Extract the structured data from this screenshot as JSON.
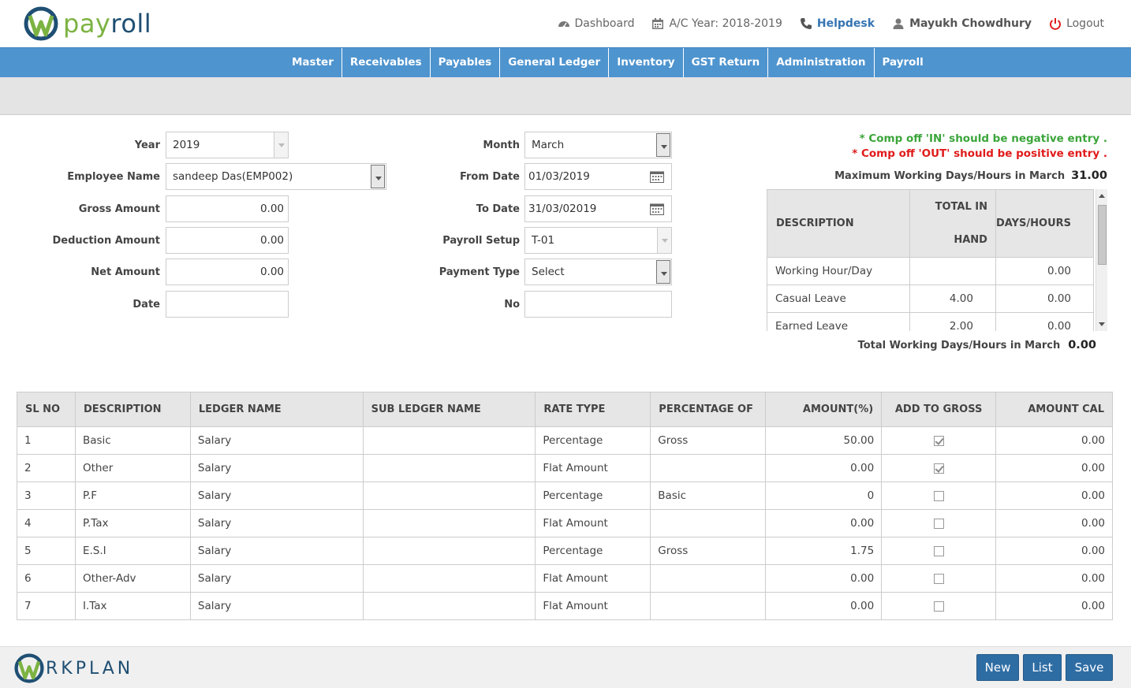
{
  "header": {
    "logo_pay": "pay",
    "logo_roll": "roll",
    "nav": {
      "dashboard": "Dashboard",
      "ac_year": "A/C Year: 2018-2019",
      "helpdesk": "Helpdesk",
      "user": "Mayukh Chowdhury",
      "logout": "Logout"
    }
  },
  "menu": [
    "Master",
    "Receivables",
    "Payables",
    "General Ledger",
    "Inventory",
    "GST Return",
    "Administration",
    "Payroll"
  ],
  "form": {
    "year_label": "Year",
    "year_value": "2019",
    "employee_label": "Employee Name",
    "employee_value": "sandeep Das(EMP002)",
    "gross_label": "Gross Amount",
    "gross_value": "0.00",
    "deduction_label": "Deduction Amount",
    "deduction_value": "0.00",
    "net_label": "Net Amount",
    "net_value": "0.00",
    "date_label": "Date",
    "date_value": "",
    "month_label": "Month",
    "month_value": "March",
    "from_label": "From Date",
    "from_value": "01/03/2019",
    "to_label": "To Date",
    "to_value": "31/03/02019",
    "setup_label": "Payroll Setup",
    "setup_value": "T-01",
    "paytype_label": "Payment Type",
    "paytype_value": "Select",
    "no_label": "No",
    "no_value": ""
  },
  "notes": {
    "comp_in": "* Comp off 'IN' should be negative entry .",
    "comp_out": "* Comp off 'OUT' should be positive entry ."
  },
  "max_working": {
    "label": "Maximum Working Days/Hours in March",
    "value": "31.00"
  },
  "total_working": {
    "label": "Total Working Days/Hours in March",
    "value": "0.00"
  },
  "leave_table": {
    "headers": {
      "description": "DESCRIPTION",
      "total_line1": "TOTAL IN",
      "total_line2": "HAND",
      "days": "DAYS/HOURS"
    },
    "rows": [
      {
        "desc": "Working Hour/Day",
        "total": "",
        "days": "0.00"
      },
      {
        "desc": "Casual Leave",
        "total": "4.00",
        "days": "0.00"
      },
      {
        "desc": "Earned Leave",
        "total": "2.00",
        "days": "0.00"
      }
    ]
  },
  "main_table": {
    "headers": [
      "SL NO",
      "DESCRIPTION",
      "LEDGER NAME",
      "SUB LEDGER NAME",
      "RATE TYPE",
      "PERCENTAGE OF",
      "AMOUNT(%)",
      "ADD TO GROSS",
      "AMOUNT CAL"
    ],
    "rows": [
      {
        "sl": "1",
        "desc": "Basic",
        "ledger": "Salary",
        "subledger": "",
        "rate": "Percentage",
        "pct_of": "Gross",
        "amount": "50.00",
        "add_gross": true,
        "amount_cal": "0.00"
      },
      {
        "sl": "2",
        "desc": "Other",
        "ledger": "Salary",
        "subledger": "",
        "rate": "Flat Amount",
        "pct_of": "",
        "amount": "0.00",
        "add_gross": true,
        "amount_cal": "0.00"
      },
      {
        "sl": "3",
        "desc": "P.F",
        "ledger": "Salary",
        "subledger": "",
        "rate": "Percentage",
        "pct_of": "Basic",
        "amount": "0",
        "add_gross": false,
        "amount_cal": "0.00"
      },
      {
        "sl": "4",
        "desc": "P.Tax",
        "ledger": "Salary",
        "subledger": "",
        "rate": "Flat Amount",
        "pct_of": "",
        "amount": "0.00",
        "add_gross": false,
        "amount_cal": "0.00"
      },
      {
        "sl": "5",
        "desc": "E.S.I",
        "ledger": "Salary",
        "subledger": "",
        "rate": "Percentage",
        "pct_of": "Gross",
        "amount": "1.75",
        "add_gross": false,
        "amount_cal": "0.00"
      },
      {
        "sl": "6",
        "desc": "Other-Adv",
        "ledger": "Salary",
        "subledger": "",
        "rate": "Flat Amount",
        "pct_of": "",
        "amount": "0.00",
        "add_gross": false,
        "amount_cal": "0.00"
      },
      {
        "sl": "7",
        "desc": "I.Tax",
        "ledger": "Salary",
        "subledger": "",
        "rate": "Flat Amount",
        "pct_of": "",
        "amount": "0.00",
        "add_gross": false,
        "amount_cal": "0.00"
      }
    ]
  },
  "footer": {
    "logo_text": "RKPLAN",
    "buttons": {
      "new": "New",
      "list": "List",
      "save": "Save"
    }
  },
  "colors": {
    "menu_bg": "#4e94cf",
    "button_bg": "#2e6da4",
    "note_green": "#3aa53a",
    "note_red": "#e01b1b"
  },
  "icons": {
    "dashboard": "dashboard-gauge-icon",
    "calendar": "calendar-icon",
    "phone": "phone-icon",
    "user": "user-icon",
    "logout": "power-icon"
  }
}
